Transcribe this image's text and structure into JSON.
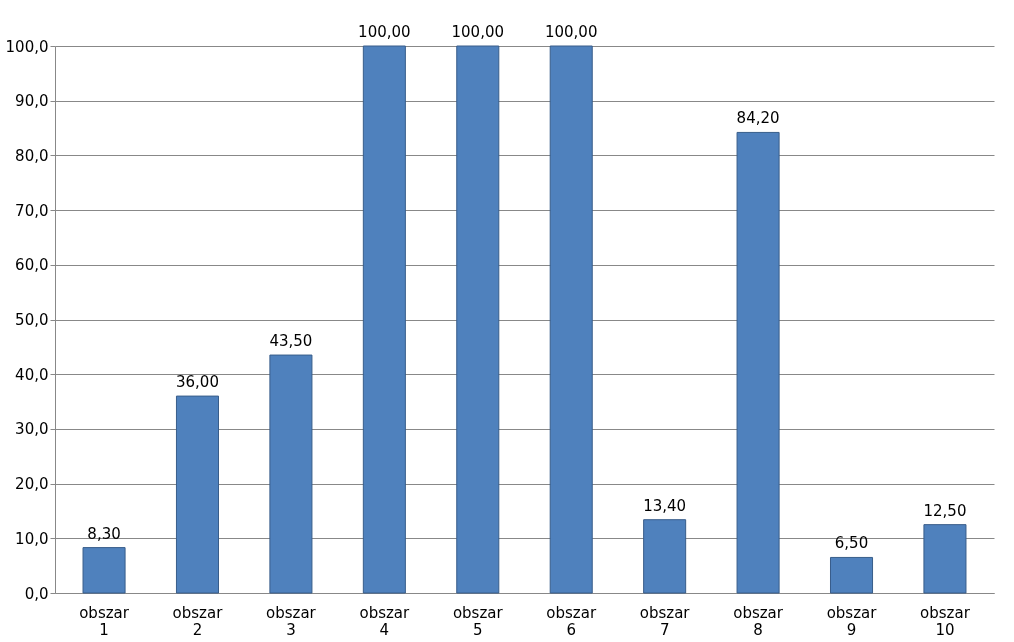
{
  "chart_data": {
    "type": "bar",
    "categories": [
      "obszar 1",
      "obszar 2",
      "obszar 3",
      "obszar 4",
      "obszar 5",
      "obszar 6",
      "obszar 7",
      "obszar 8",
      "obszar 9",
      "obszar 10"
    ],
    "values": [
      8.3,
      36.0,
      43.5,
      100.0,
      100.0,
      100.0,
      13.4,
      84.2,
      6.5,
      12.5
    ],
    "value_labels": [
      "8,30",
      "36,00",
      "43,50",
      "100,00",
      "100,00",
      "100,00",
      "13,40",
      "84,20",
      "6,50",
      "12,50"
    ],
    "color": "#4f81bd",
    "ylim": [
      0,
      100
    ],
    "yticks": [
      {
        "value": 0,
        "label": "0,0"
      },
      {
        "value": 10,
        "label": "10,0"
      },
      {
        "value": 20,
        "label": "20,0"
      },
      {
        "value": 30,
        "label": "30,0"
      },
      {
        "value": 40,
        "label": "40,0"
      },
      {
        "value": 50,
        "label": "50,0"
      },
      {
        "value": 60,
        "label": "60,0"
      },
      {
        "value": 70,
        "label": "70,0"
      },
      {
        "value": 80,
        "label": "80,0"
      },
      {
        "value": 90,
        "label": "90,0"
      },
      {
        "value": 100,
        "label": "100,0"
      }
    ],
    "grid": "y"
  }
}
